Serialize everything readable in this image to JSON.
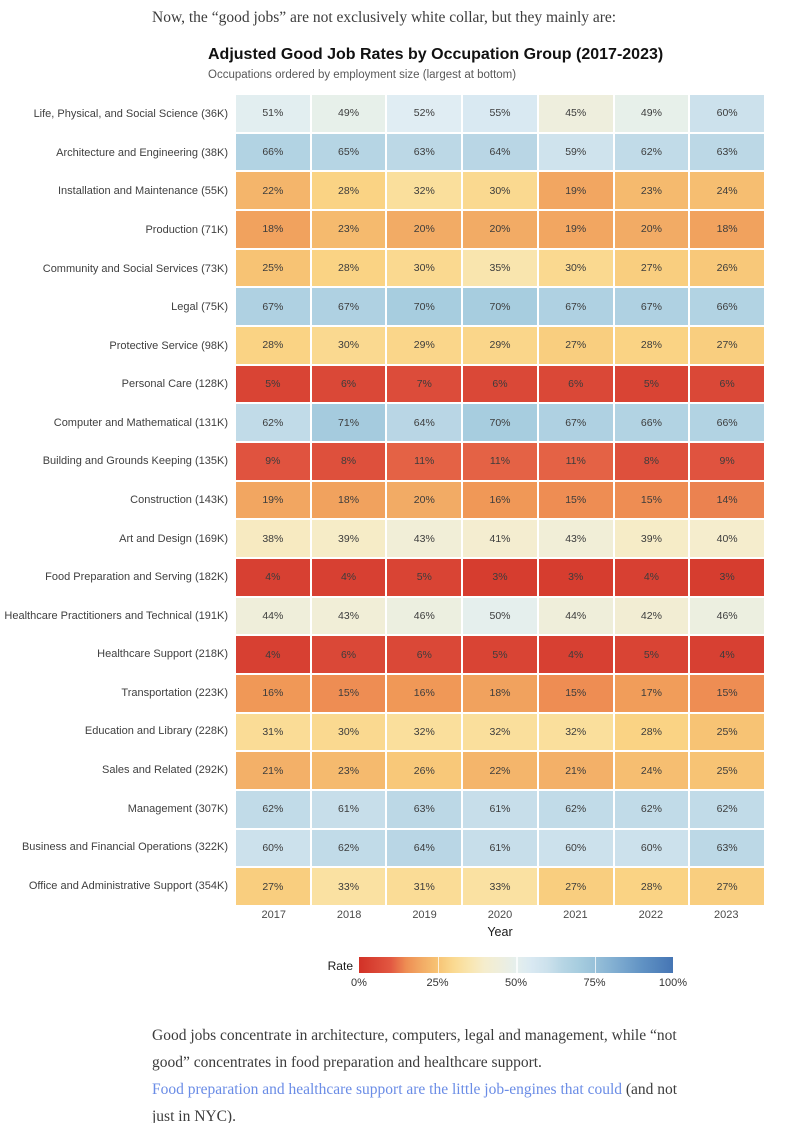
{
  "intro": "Now, the “good jobs” are not exclusively white collar, but they mainly are:",
  "chart": {
    "title": "Adjusted Good Job Rates by Occupation Group (2017-2023)",
    "subtitle": "Occupations ordered by employment size (largest at bottom)",
    "xlabel": "Year",
    "legend_title": "Rate"
  },
  "chart_data": {
    "type": "heatmap",
    "title": "Adjusted Good Job Rates by Occupation Group (2017-2023)",
    "subtitle": "Occupations ordered by employment size (largest at bottom)",
    "xlabel": "Year",
    "x": [
      "2017",
      "2018",
      "2019",
      "2020",
      "2021",
      "2022",
      "2023"
    ],
    "value_unit": "%",
    "rows": [
      {
        "label": "Life, Physical, and Social Science (36K)",
        "values": [
          51,
          49,
          52,
          55,
          45,
          49,
          60
        ]
      },
      {
        "label": "Architecture and Engineering (38K)",
        "values": [
          66,
          65,
          63,
          64,
          59,
          62,
          63
        ]
      },
      {
        "label": "Installation and Maintenance (55K)",
        "values": [
          22,
          28,
          32,
          30,
          19,
          23,
          24
        ]
      },
      {
        "label": "Production (71K)",
        "values": [
          18,
          23,
          20,
          20,
          19,
          20,
          18
        ]
      },
      {
        "label": "Community and Social Services (73K)",
        "values": [
          25,
          28,
          30,
          35,
          30,
          27,
          26
        ]
      },
      {
        "label": "Legal (75K)",
        "values": [
          67,
          67,
          70,
          70,
          67,
          67,
          66
        ]
      },
      {
        "label": "Protective Service (98K)",
        "values": [
          28,
          30,
          29,
          29,
          27,
          28,
          27
        ]
      },
      {
        "label": "Personal Care (128K)",
        "values": [
          5,
          6,
          7,
          6,
          6,
          5,
          6
        ]
      },
      {
        "label": "Computer and Mathematical (131K)",
        "values": [
          62,
          71,
          64,
          70,
          67,
          66,
          66
        ]
      },
      {
        "label": "Building and Grounds Keeping (135K)",
        "values": [
          9,
          8,
          11,
          11,
          11,
          8,
          9
        ]
      },
      {
        "label": "Construction (143K)",
        "values": [
          19,
          18,
          20,
          16,
          15,
          15,
          14
        ]
      },
      {
        "label": "Art and Design (169K)",
        "values": [
          38,
          39,
          43,
          41,
          43,
          39,
          40
        ]
      },
      {
        "label": "Food Preparation and Serving (182K)",
        "values": [
          4,
          4,
          5,
          3,
          3,
          4,
          3
        ]
      },
      {
        "label": "Healthcare Practitioners and Technical (191K)",
        "values": [
          44,
          43,
          46,
          50,
          44,
          42,
          46
        ]
      },
      {
        "label": "Healthcare Support (218K)",
        "values": [
          4,
          6,
          6,
          5,
          4,
          5,
          4
        ]
      },
      {
        "label": "Transportation (223K)",
        "values": [
          16,
          15,
          16,
          18,
          15,
          17,
          15
        ]
      },
      {
        "label": "Education and Library (228K)",
        "values": [
          31,
          30,
          32,
          32,
          32,
          28,
          25
        ]
      },
      {
        "label": "Sales and Related (292K)",
        "values": [
          21,
          23,
          26,
          22,
          21,
          24,
          25
        ]
      },
      {
        "label": "Management (307K)",
        "values": [
          62,
          61,
          63,
          61,
          62,
          62,
          62
        ]
      },
      {
        "label": "Business and Financial Operations (322K)",
        "values": [
          60,
          62,
          64,
          61,
          60,
          60,
          63
        ]
      },
      {
        "label": "Office and Administrative Support (354K)",
        "values": [
          27,
          33,
          31,
          33,
          27,
          28,
          27
        ]
      }
    ],
    "legend": {
      "label": "Rate",
      "ticks": [
        "0%",
        "25%",
        "50%",
        "75%",
        "100%"
      ],
      "tick_positions": [
        0,
        25,
        50,
        75,
        100
      ],
      "range": [
        0,
        100
      ],
      "position": "bottom"
    },
    "colormap": {
      "name": "red-yellow-blue",
      "stops": [
        [
          0,
          "#d23127"
        ],
        [
          6,
          "#da4837"
        ],
        [
          10,
          "#e25741"
        ],
        [
          16,
          "#f09857"
        ],
        [
          21,
          "#f3b068"
        ],
        [
          25,
          "#f7c374"
        ],
        [
          28,
          "#fad384"
        ],
        [
          32,
          "#fadf9c"
        ],
        [
          36,
          "#f8e7b4"
        ],
        [
          40,
          "#f5edcd"
        ],
        [
          45,
          "#eeeedd"
        ],
        [
          49,
          "#e7f0ea"
        ],
        [
          52,
          "#e0edf3"
        ],
        [
          56,
          "#d7e8f1"
        ],
        [
          60,
          "#cce1ec"
        ],
        [
          63,
          "#bcd8e6"
        ],
        [
          67,
          "#afd1e2"
        ],
        [
          72,
          "#a2cadd"
        ],
        [
          80,
          "#86b2d3"
        ],
        [
          90,
          "#6193c4"
        ],
        [
          100,
          "#4575b4"
        ]
      ]
    },
    "grid": false
  },
  "footer": {
    "para1": "Good jobs concentrate in architecture, computers, legal and management, while “not good” concentrates in food preparation and healthcare support.",
    "link_text": "Food preparation and healthcare support are the little job-engines that could",
    "para2_rest": " (and not just in NYC)."
  }
}
